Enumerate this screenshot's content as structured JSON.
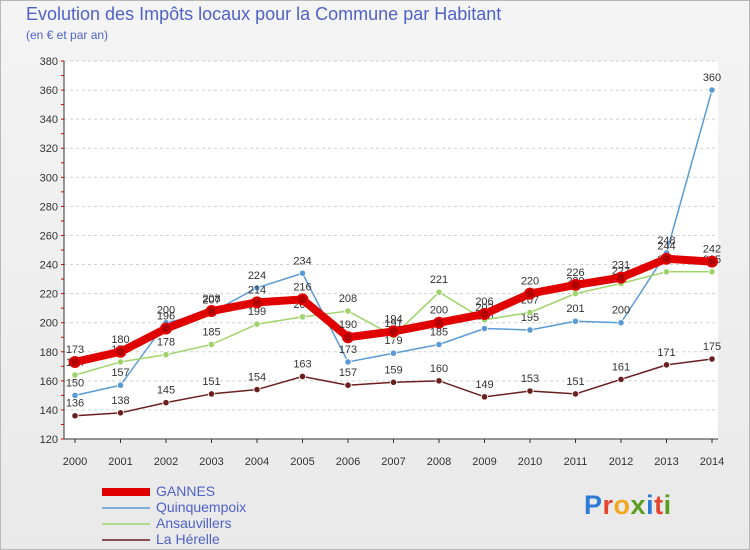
{
  "header": {
    "title": "Evolution des Impôts locaux pour la Commune par Habitant",
    "subtitle": "(en € et par an)"
  },
  "logo": {
    "letters": [
      "P",
      "r",
      "o",
      "x",
      "i",
      "t",
      "i"
    ],
    "colors": [
      "#2e7bd6",
      "#e5452c",
      "#f2a81d",
      "#5a9f22",
      "#2e7bd6",
      "#e5452c",
      "#5a9f22"
    ]
  },
  "chart_data": {
    "type": "line",
    "title": "Evolution des Impôts locaux pour la Commune par Habitant",
    "subtitle": "(en € et par an)",
    "x": [
      "2000",
      "2001",
      "2002",
      "2003",
      "2004",
      "2005",
      "2006",
      "2007",
      "2008",
      "2009",
      "2010",
      "2011",
      "2012",
      "2013",
      "2014"
    ],
    "ylim": [
      120,
      380
    ],
    "yticks": [
      120,
      140,
      160,
      180,
      200,
      220,
      240,
      260,
      280,
      300,
      320,
      340,
      360,
      380
    ],
    "grid": "horizontal dashed",
    "legend_placement": "bottom-left",
    "series": [
      {
        "name": "GANNES",
        "color": "#e00000",
        "values": [
          173,
          180,
          196,
          208,
          214,
          216,
          190,
          194,
          200,
          206,
          220,
          226,
          231,
          244,
          242
        ]
      },
      {
        "name": "Quinquempoix",
        "color": "#5b9bd5",
        "values": [
          150,
          157,
          200,
          207,
          224,
          234,
          173,
          179,
          185,
          196,
          195,
          201,
          200,
          248,
          360
        ]
      },
      {
        "name": "Ansauvillers",
        "color": "#9ed36a",
        "values": [
          164,
          173,
          178,
          185,
          199,
          204,
          208,
          191,
          221,
          202,
          207,
          220,
          227,
          235,
          235
        ]
      },
      {
        "name": "La Hérelle",
        "color": "#6a1f1f",
        "values": [
          136,
          138,
          145,
          151,
          154,
          163,
          157,
          159,
          160,
          149,
          153,
          151,
          161,
          171,
          175
        ]
      }
    ]
  }
}
